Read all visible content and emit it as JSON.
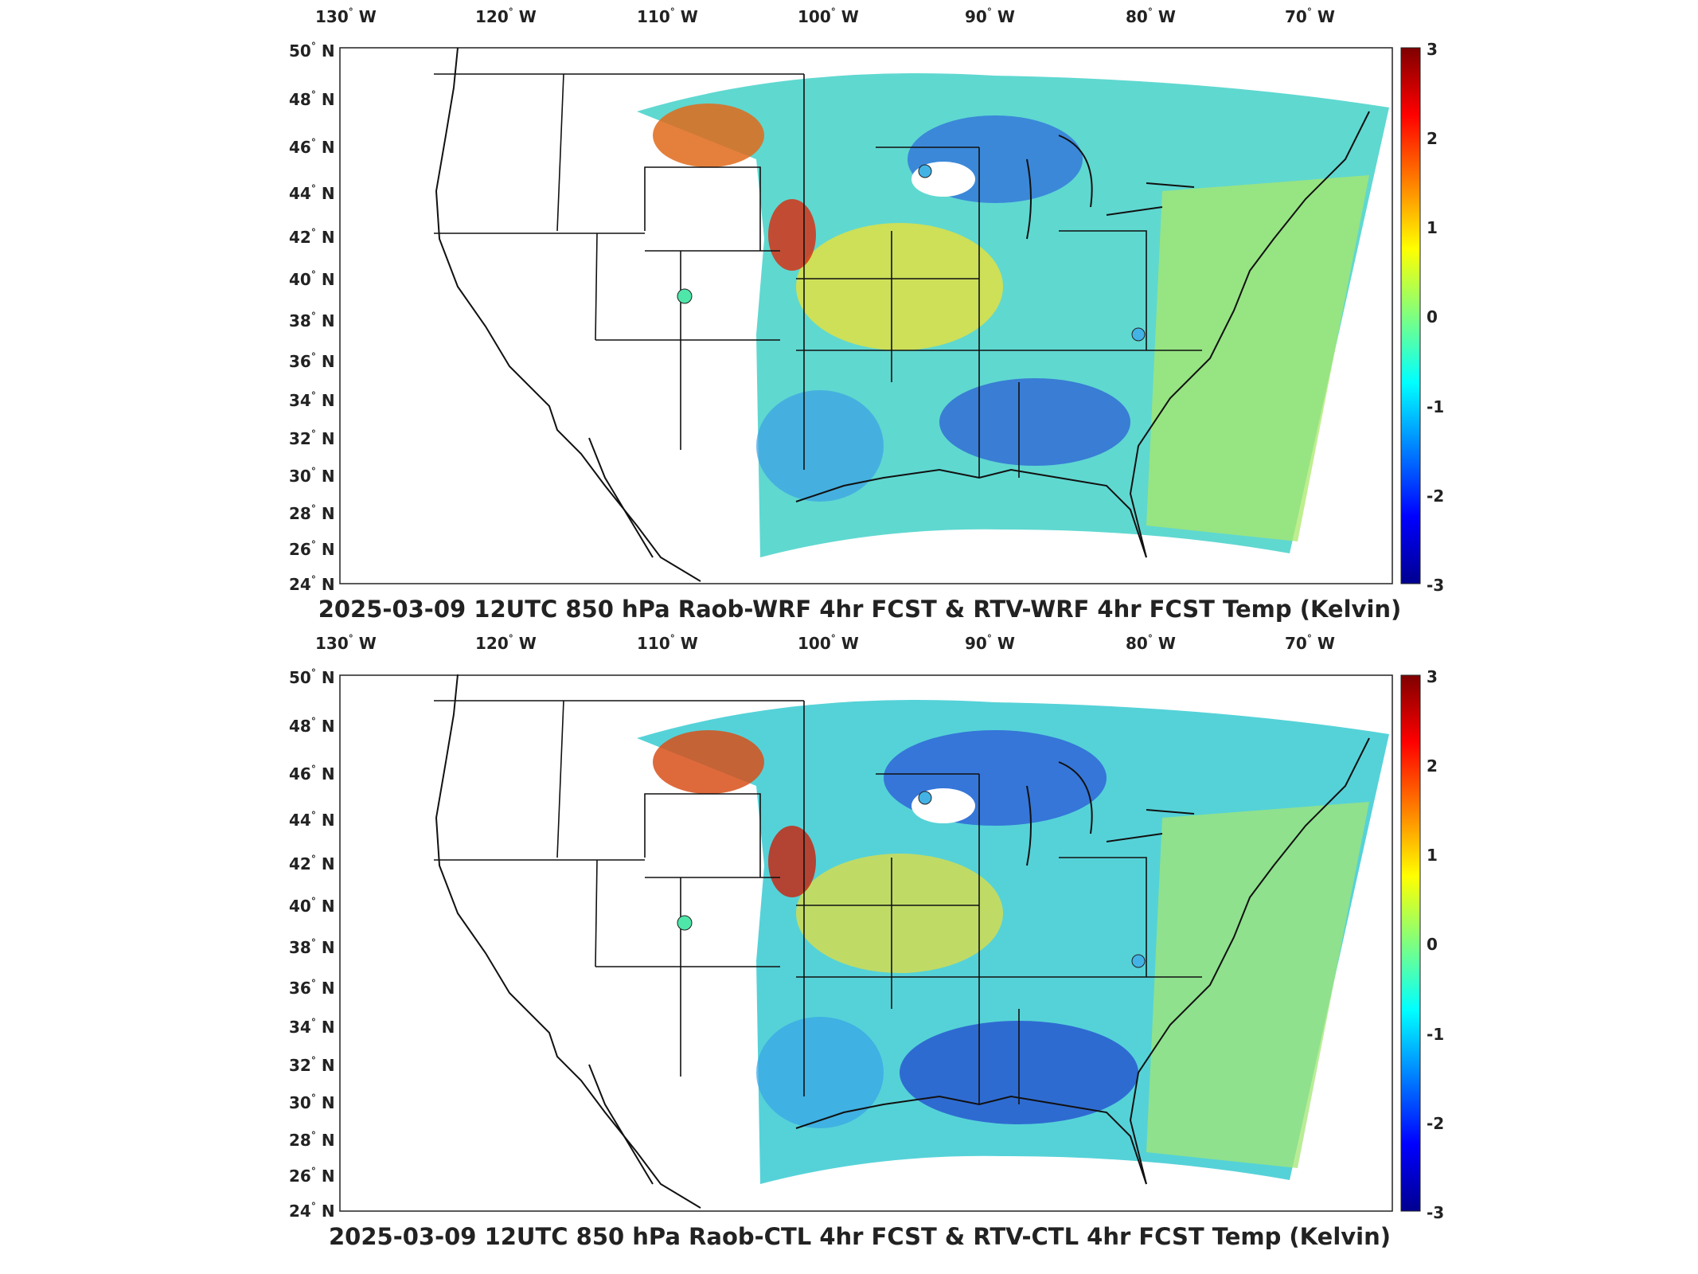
{
  "panels": [
    {
      "title": "2025-03-09 12UTC 850 hPa Raob-WRF 4hr FCST & RTV-WRF 4hr FCST Temp (Kelvin)"
    },
    {
      "title": "2025-03-09 12UTC 850 hPa Raob-CTL 4hr FCST & RTV-CTL 4hr FCST Temp (Kelvin)"
    }
  ],
  "map": {
    "lon_ticks": [
      "130",
      "120",
      "110",
      "100",
      "90",
      "80",
      "70"
    ],
    "lon_suffix": "W",
    "lat_ticks": [
      "50",
      "48",
      "46",
      "44",
      "42",
      "40",
      "38",
      "36",
      "34",
      "32",
      "30",
      "28",
      "26",
      "24"
    ],
    "lat_suffix": "N",
    "degree_symbol": "°",
    "lon_range": [
      -133,
      -62
    ],
    "lat_range": [
      24,
      50
    ]
  },
  "colorbar": {
    "ticks": [
      "3",
      "2",
      "1",
      "0",
      "-1",
      "-2",
      "-3"
    ],
    "range": [
      -3,
      3
    ],
    "colormap": "jet",
    "colors": [
      "#00008f",
      "#0000ff",
      "#007fff",
      "#00ffff",
      "#7fff7f",
      "#ffff00",
      "#ff7f00",
      "#ff0000",
      "#7f0000"
    ]
  },
  "raob_stations": [
    {
      "name": "",
      "lon": -93.5,
      "lat": 44.9,
      "value": -0.9
    },
    {
      "name": "",
      "lon": -108.5,
      "lat": 39.1,
      "value": 0.1
    },
    {
      "name": "",
      "lon": -80.0,
      "lat": 37.2,
      "value": -0.7
    }
  ]
}
